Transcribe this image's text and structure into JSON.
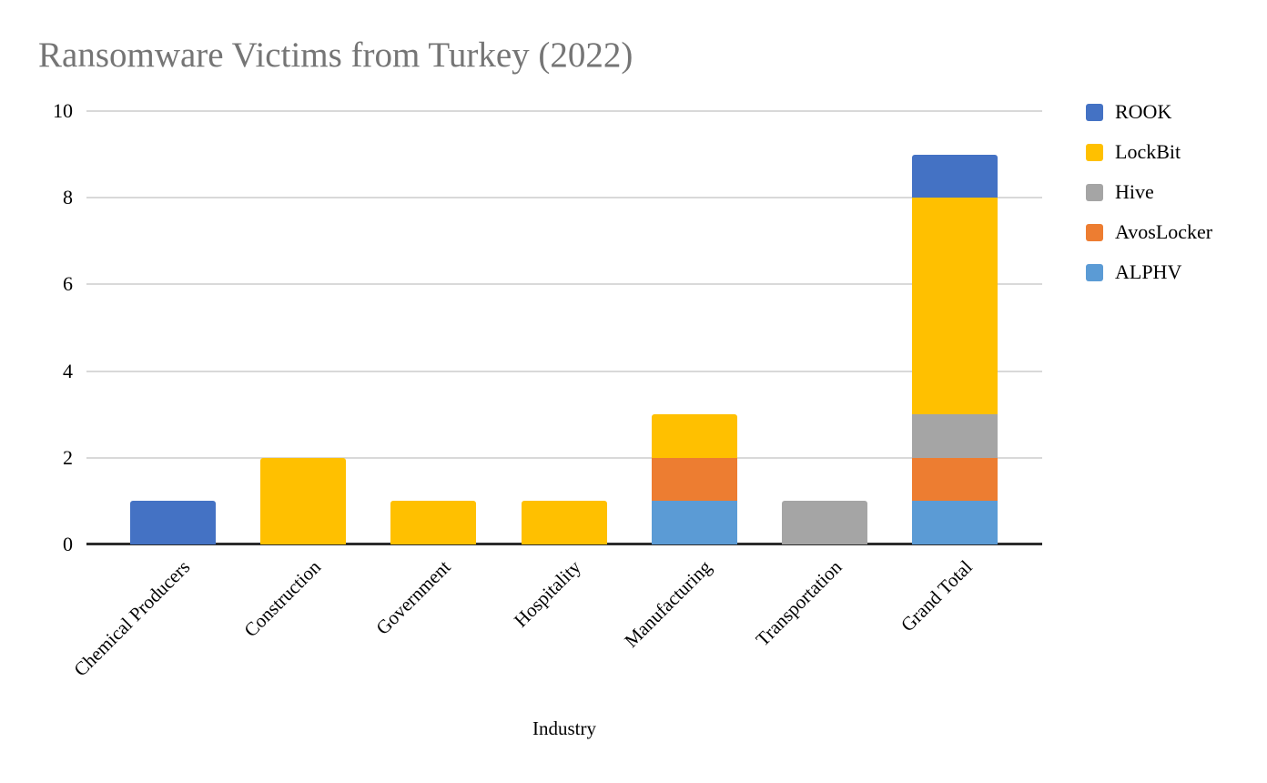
{
  "page": {
    "background": "#ffffff"
  },
  "chart_data": {
    "type": "bar",
    "stacked": true,
    "title": "Ransomware Victims from Turkey (2022)",
    "title_color": "#757575",
    "xlabel": "Industry",
    "ylabel": "",
    "categories": [
      "Chemical Producers",
      "Construction",
      "Government",
      "Hospitality",
      "Manufacturing",
      "Transportation",
      "Grand Total"
    ],
    "series": [
      {
        "name": "ROOK",
        "color": "#4472C4",
        "values": [
          1,
          0,
          0,
          0,
          0,
          0,
          1
        ]
      },
      {
        "name": "LockBit",
        "color": "#FFC000",
        "values": [
          0,
          2,
          1,
          1,
          1,
          0,
          5
        ]
      },
      {
        "name": "Hive",
        "color": "#A5A5A5",
        "values": [
          0,
          0,
          0,
          0,
          0,
          1,
          1
        ]
      },
      {
        "name": "AvosLocker",
        "color": "#ED7D31",
        "values": [
          0,
          0,
          0,
          0,
          1,
          0,
          1
        ]
      },
      {
        "name": "ALPHV",
        "color": "#5B9BD5",
        "values": [
          0,
          0,
          0,
          0,
          1,
          0,
          1
        ]
      }
    ],
    "stack_order_bottom_to_top": [
      "ALPHV",
      "AvosLocker",
      "Hive",
      "LockBit",
      "ROOK"
    ],
    "category_totals": [
      1,
      2,
      1,
      1,
      3,
      1,
      9
    ],
    "yticks": [
      0,
      2,
      4,
      6,
      8,
      10
    ],
    "ylim": [
      0,
      10
    ],
    "grid": true,
    "legend_position": "right",
    "legend_labels": [
      "ROOK",
      "LockBit",
      "Hive",
      "AvosLocker",
      "ALPHV"
    ],
    "axis_text_color": "#000000",
    "gridline_color": "#d9d9d9",
    "baseline_color": "#2b2b2b"
  }
}
